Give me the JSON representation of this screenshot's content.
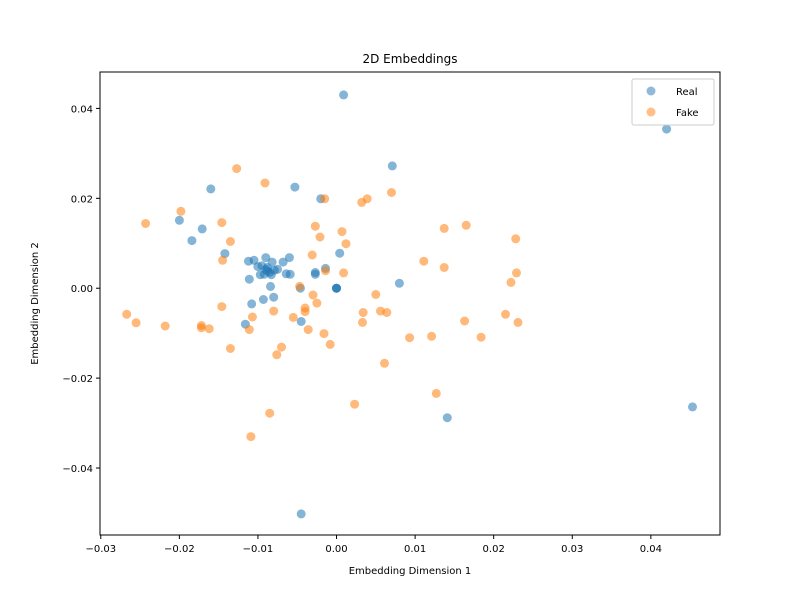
{
  "chart_data": {
    "type": "scatter",
    "title": "2D Embeddings",
    "xlabel": "Embedding Dimension 1",
    "ylabel": "Embedding Dimension 2",
    "xlim": [
      -0.0301,
      0.0488
    ],
    "ylim": [
      -0.0549,
      0.0481
    ],
    "xticks": [
      {
        "value": -0.03,
        "label": "−0.03"
      },
      {
        "value": -0.02,
        "label": "−0.02"
      },
      {
        "value": -0.01,
        "label": "−0.01"
      },
      {
        "value": 0.0,
        "label": "0.00"
      },
      {
        "value": 0.01,
        "label": "0.01"
      },
      {
        "value": 0.02,
        "label": "0.02"
      },
      {
        "value": 0.03,
        "label": "0.03"
      },
      {
        "value": 0.04,
        "label": "0.04"
      }
    ],
    "yticks": [
      {
        "value": -0.04,
        "label": "−0.04"
      },
      {
        "value": -0.02,
        "label": "−0.02"
      },
      {
        "value": 0.0,
        "label": "0.00"
      },
      {
        "value": 0.02,
        "label": "0.02"
      },
      {
        "value": 0.04,
        "label": "0.04"
      }
    ],
    "grid": false,
    "legend_position": "top-right",
    "series": [
      {
        "name": "Real",
        "color": "#1f77b4",
        "points": [
          [
            0.0009,
            0.043
          ],
          [
            0.042,
            0.0354
          ],
          [
            0.0071,
            0.0272
          ],
          [
            -0.0053,
            0.0225
          ],
          [
            -0.016,
            0.0221
          ],
          [
            -0.002,
            0.0199
          ],
          [
            -0.02,
            0.0151
          ],
          [
            -0.0171,
            0.0132
          ],
          [
            -0.0184,
            0.0106
          ],
          [
            -0.0142,
            0.0077
          ],
          [
            0.0004,
            0.0078
          ],
          [
            -0.0112,
            0.006
          ],
          [
            -0.0105,
            0.0062
          ],
          [
            -0.009,
            0.0068
          ],
          [
            -0.0095,
            0.005
          ],
          [
            -0.01,
            0.0048
          ],
          [
            -0.0088,
            0.0046
          ],
          [
            -0.0082,
            0.0058
          ],
          [
            -0.0079,
            0.004
          ],
          [
            -0.0085,
            0.0035
          ],
          [
            -0.0092,
            0.0031
          ],
          [
            -0.0097,
            0.003
          ],
          [
            -0.0075,
            0.0042
          ],
          [
            -0.0068,
            0.0058
          ],
          [
            -0.006,
            0.0068
          ],
          [
            -0.0064,
            0.0032
          ],
          [
            -0.0059,
            0.0031
          ],
          [
            -0.0027,
            0.0035
          ],
          [
            -0.0027,
            0.0031
          ],
          [
            -0.0014,
            0.0044
          ],
          [
            -0.0111,
            0.002
          ],
          [
            -0.0084,
            0.0004
          ],
          [
            -0.0046,
            0.0
          ],
          [
            0.008,
            0.0011
          ],
          [
            -0.0108,
            -0.0035
          ],
          [
            -0.0093,
            -0.0025
          ],
          [
            -0.008,
            -0.002
          ],
          [
            -0.0116,
            -0.008
          ],
          [
            -0.0045,
            -0.0074
          ],
          [
            0.0141,
            -0.0288
          ],
          [
            0.0453,
            -0.0264
          ],
          [
            -0.0045,
            -0.0502
          ],
          [
            0.0,
            0.0
          ],
          [
            0.0,
            0.0
          ],
          [
            0.0,
            0.0
          ],
          [
            -0.0088,
            0.0038
          ],
          [
            -0.0083,
            0.003
          ],
          [
            -0.009,
            0.0042
          ]
        ]
      },
      {
        "name": "Fake",
        "color": "#ff7f0e",
        "points": [
          [
            -0.0127,
            0.0266
          ],
          [
            -0.0091,
            0.0234
          ],
          [
            0.007,
            0.0213
          ],
          [
            0.0039,
            0.0199
          ],
          [
            0.0032,
            0.0191
          ],
          [
            -0.0015,
            0.0199
          ],
          [
            -0.0198,
            0.0171
          ],
          [
            -0.0146,
            0.0146
          ],
          [
            -0.0243,
            0.0144
          ],
          [
            0.0165,
            0.014
          ],
          [
            0.0137,
            0.0133
          ],
          [
            -0.0027,
            0.0138
          ],
          [
            0.0007,
            0.0126
          ],
          [
            -0.0021,
            0.0114
          ],
          [
            0.0228,
            0.011
          ],
          [
            -0.0135,
            0.0104
          ],
          [
            0.0012,
            0.0099
          ],
          [
            -0.0145,
            0.0062
          ],
          [
            0.0111,
            0.006
          ],
          [
            -0.0031,
            0.0074
          ],
          [
            0.0137,
            0.0046
          ],
          [
            -0.0014,
            0.0039
          ],
          [
            0.0009,
            0.0034
          ],
          [
            0.0229,
            0.0034
          ],
          [
            0.0222,
            0.0013
          ],
          [
            -0.0047,
            0.0004
          ],
          [
            -0.003,
            -0.0015
          ],
          [
            0.005,
            -0.0014
          ],
          [
            -0.0146,
            -0.0041
          ],
          [
            -0.0025,
            -0.0033
          ],
          [
            -0.004,
            -0.0044
          ],
          [
            -0.008,
            -0.0051
          ],
          [
            -0.004,
            -0.0052
          ],
          [
            0.0034,
            -0.0054
          ],
          [
            0.0056,
            -0.0051
          ],
          [
            0.0064,
            -0.0054
          ],
          [
            -0.0055,
            -0.0065
          ],
          [
            -0.0267,
            -0.0058
          ],
          [
            -0.0255,
            -0.0077
          ],
          [
            -0.0218,
            -0.0084
          ],
          [
            -0.0172,
            -0.0083
          ],
          [
            -0.0172,
            -0.0088
          ],
          [
            -0.0162,
            -0.009
          ],
          [
            -0.0107,
            -0.0064
          ],
          [
            0.0033,
            -0.0076
          ],
          [
            0.0163,
            -0.0073
          ],
          [
            0.0215,
            -0.0058
          ],
          [
            0.0231,
            -0.0076
          ],
          [
            -0.0111,
            -0.0092
          ],
          [
            -0.0036,
            -0.0092
          ],
          [
            -0.0016,
            -0.0101
          ],
          [
            0.0093,
            -0.011
          ],
          [
            0.0121,
            -0.0107
          ],
          [
            0.0184,
            -0.0109
          ],
          [
            -0.0135,
            -0.0134
          ],
          [
            -0.007,
            -0.0131
          ],
          [
            -0.0076,
            -0.0148
          ],
          [
            -0.0008,
            -0.0125
          ],
          [
            0.0061,
            -0.0167
          ],
          [
            0.0127,
            -0.0234
          ],
          [
            0.0023,
            -0.0258
          ],
          [
            -0.0085,
            -0.0278
          ],
          [
            -0.0109,
            -0.033
          ]
        ]
      }
    ]
  }
}
